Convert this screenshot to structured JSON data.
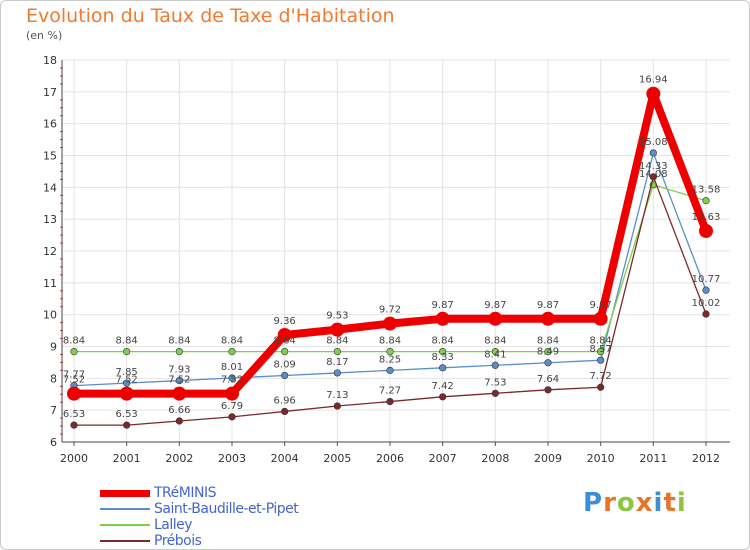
{
  "title": "Evolution du Taux de Taxe d'Habitation",
  "unit": "(en %)",
  "chart_data": {
    "type": "line",
    "x": [
      "2000",
      "2001",
      "2002",
      "2003",
      "2004",
      "2005",
      "2006",
      "2007",
      "2008",
      "2009",
      "2010",
      "2011",
      "2012"
    ],
    "ylim": [
      6,
      18
    ],
    "yticks": [
      6,
      7,
      8,
      9,
      10,
      11,
      12,
      13,
      14,
      15,
      16,
      17,
      18
    ],
    "grid": true,
    "series": [
      {
        "name": "TRéMINIS",
        "color": "#ee0000",
        "values": [
          7.52,
          7.52,
          7.52,
          7.52,
          9.36,
          9.53,
          9.72,
          9.87,
          9.87,
          9.87,
          9.87,
          16.94,
          12.63
        ],
        "labels": [
          "7.52",
          "7.52",
          "7.52",
          "7.52",
          "9.36",
          "9.53",
          "9.72",
          "9.87",
          "9.87",
          "9.87",
          "9.87",
          "16.94",
          "12.63"
        ]
      },
      {
        "name": "Saint-Baudille-et-Pipet",
        "color": "#5b8ec9",
        "values": [
          7.77,
          7.85,
          7.93,
          8.01,
          8.09,
          8.17,
          8.25,
          8.33,
          8.41,
          8.49,
          8.57,
          15.08,
          10.77
        ],
        "labels": [
          "7.77",
          "7.85",
          "7.93",
          "8.01",
          "8.09",
          "8.17",
          "8.25",
          "8.33",
          "8.41",
          "8.49",
          "8.57",
          "15.08",
          "10.77"
        ]
      },
      {
        "name": "Lalley",
        "color": "#7ed04c",
        "values": [
          8.84,
          8.84,
          8.84,
          8.84,
          8.84,
          8.84,
          8.84,
          8.84,
          8.84,
          8.84,
          8.84,
          14.08,
          13.58
        ],
        "labels": [
          "8.84",
          "8.84",
          "8.84",
          "8.84",
          "8.84",
          "8.84",
          "8.84",
          "8.84",
          "8.84",
          "8.84",
          "8.84",
          "14.08",
          "13.58"
        ]
      },
      {
        "name": "Prébois",
        "color": "#7b2a2a",
        "values": [
          6.53,
          6.53,
          6.66,
          6.79,
          6.96,
          7.13,
          7.27,
          7.42,
          7.53,
          7.64,
          7.72,
          14.33,
          10.02
        ],
        "labels": [
          "6.53",
          "6.53",
          "6.66",
          "6.79",
          "6.96",
          "7.13",
          "7.27",
          "7.42",
          "7.53",
          "7.64",
          "7.72",
          "14.33",
          "10.02"
        ]
      }
    ]
  },
  "logo": {
    "letters": [
      "P",
      "r",
      "o",
      "x",
      "i",
      "t",
      "i"
    ],
    "colors": [
      "#3a8fd8",
      "#e8742a",
      "#8cc63e",
      "#e8742a",
      "#3a8fd8",
      "#e8742a",
      "#8cc63e"
    ]
  }
}
